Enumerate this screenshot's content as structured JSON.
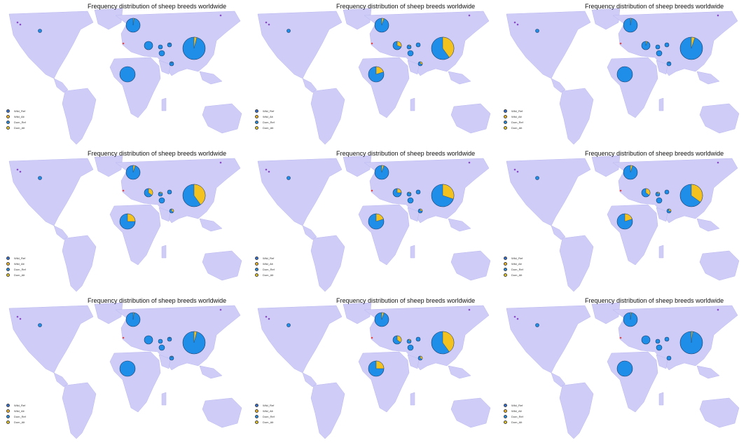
{
  "colors": {
    "land": "#cfcdf7",
    "ocean": "#ffffff",
    "blue": "#1f8ee8",
    "yellow": "#f4c21f",
    "dot_red": "#e0474c",
    "dot_purple": "#8a4cc6"
  },
  "legend_items": [
    {
      "label": "Wild_Ref",
      "color": "#2f6fd8"
    },
    {
      "label": "Wild_Alt",
      "color": "#f4b81f"
    },
    {
      "label": "Dom_Ref",
      "color": "#1f8ee8"
    },
    {
      "label": "Dom_Alt",
      "color": "#e8c81f"
    }
  ],
  "panels": [
    {
      "title": "Frequency distribution of sheep breeds worldwide",
      "pies": [
        {
          "alt": 0.02
        },
        {
          "alt": 0.0
        },
        {
          "alt": 0.0
        },
        {
          "alt": 0.0
        },
        {
          "alt": 0.02
        },
        {
          "alt": 0.04
        },
        {
          "alt": 0.0
        },
        {
          "alt": 0.05
        },
        {
          "alt": 0.0
        }
      ]
    },
    {
      "title": "Frequency distribution of sheep breeds worldwide",
      "pies": [
        {
          "alt": 0.05
        },
        {
          "alt": 0.3
        },
        {
          "alt": 0.1
        },
        {
          "alt": 0.0
        },
        {
          "alt": 0.0
        },
        {
          "alt": 0.4
        },
        {
          "alt": 0.2
        },
        {
          "alt": 0.3
        },
        {
          "alt": 0.0
        }
      ]
    },
    {
      "title": "Frequency distribution of sheep breeds worldwide",
      "pies": [
        {
          "alt": 0.02
        },
        {
          "alt": 0.05
        },
        {
          "alt": 0.0
        },
        {
          "alt": 0.0
        },
        {
          "alt": 0.0
        },
        {
          "alt": 0.05
        },
        {
          "alt": 0.0
        },
        {
          "alt": 0.03
        },
        {
          "alt": 0.0
        }
      ]
    },
    {
      "title": "Frequency distribution of sheep breeds worldwide",
      "pies": [
        {
          "alt": 0.05
        },
        {
          "alt": 0.35
        },
        {
          "alt": 0.15
        },
        {
          "alt": 0.0
        },
        {
          "alt": 0.0
        },
        {
          "alt": 0.4
        },
        {
          "alt": 0.25
        },
        {
          "alt": 0.35
        },
        {
          "alt": 0.0
        }
      ]
    },
    {
      "title": "Frequency distribution of sheep breeds worldwide",
      "pies": [
        {
          "alt": 0.05
        },
        {
          "alt": 0.25
        },
        {
          "alt": 0.1
        },
        {
          "alt": 0.0
        },
        {
          "alt": 0.0
        },
        {
          "alt": 0.3
        },
        {
          "alt": 0.2
        },
        {
          "alt": 0.25
        },
        {
          "alt": 0.0
        }
      ]
    },
    {
      "title": "Frequency distribution of sheep breeds worldwide",
      "pies": [
        {
          "alt": 0.05
        },
        {
          "alt": 0.35
        },
        {
          "alt": 0.15
        },
        {
          "alt": 0.0
        },
        {
          "alt": 0.0
        },
        {
          "alt": 0.35
        },
        {
          "alt": 0.2
        },
        {
          "alt": 0.3
        },
        {
          "alt": 0.0
        }
      ]
    },
    {
      "title": "Frequency distribution of sheep breeds worldwide",
      "pies": [
        {
          "alt": 0.02
        },
        {
          "alt": 0.0
        },
        {
          "alt": 0.0
        },
        {
          "alt": 0.0
        },
        {
          "alt": 0.02
        },
        {
          "alt": 0.04
        },
        {
          "alt": 0.0
        },
        {
          "alt": 0.05
        },
        {
          "alt": 0.0
        }
      ]
    },
    {
      "title": "Frequency distribution of sheep breeds worldwide",
      "pies": [
        {
          "alt": 0.05
        },
        {
          "alt": 0.35
        },
        {
          "alt": 0.15
        },
        {
          "alt": 0.0
        },
        {
          "alt": 0.0
        },
        {
          "alt": 0.4
        },
        {
          "alt": 0.25
        },
        {
          "alt": 0.35
        },
        {
          "alt": 0.0
        }
      ]
    },
    {
      "title": "Frequency distribution of sheep breeds worldwide",
      "pies": [
        {
          "alt": 0.02
        },
        {
          "alt": 0.0
        },
        {
          "alt": 0.0
        },
        {
          "alt": 0.0
        },
        {
          "alt": 0.0
        },
        {
          "alt": 0.02
        },
        {
          "alt": 0.0
        },
        {
          "alt": 0.0
        },
        {
          "alt": 0.0
        }
      ]
    }
  ]
}
